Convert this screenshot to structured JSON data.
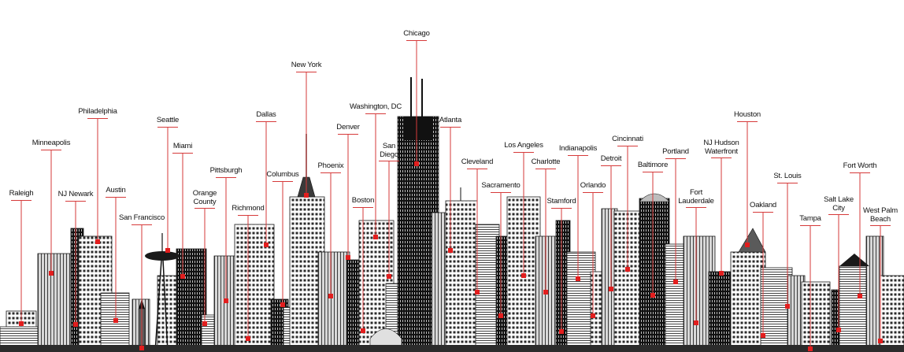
{
  "colors": {
    "accent": "#e21e1e",
    "line": "#d63a3a",
    "building_dark": "#1a1a1a",
    "building_mid": "#5a5a5a",
    "building_light": "#bdbdbd",
    "background": "#ffffff"
  },
  "cities": [
    {
      "name": "Raleigh"
    },
    {
      "name": "Minneapolis"
    },
    {
      "name": "NJ Newark"
    },
    {
      "name": "Philadelphia"
    },
    {
      "name": "Austin"
    },
    {
      "name": "San Francisco"
    },
    {
      "name": "Seattle"
    },
    {
      "name": "Miami"
    },
    {
      "name": "Orange\nCounty"
    },
    {
      "name": "Pittsburgh"
    },
    {
      "name": "Richmond"
    },
    {
      "name": "Dallas"
    },
    {
      "name": "Columbus"
    },
    {
      "name": "New York"
    },
    {
      "name": "Phoenix"
    },
    {
      "name": "Denver"
    },
    {
      "name": "Washington, DC"
    },
    {
      "name": "Boston"
    },
    {
      "name": "San\nDiego"
    },
    {
      "name": "Chicago"
    },
    {
      "name": "Atlanta"
    },
    {
      "name": "Cleveland"
    },
    {
      "name": "Sacramento"
    },
    {
      "name": "Los Angeles"
    },
    {
      "name": "Charlotte"
    },
    {
      "name": "Stamford"
    },
    {
      "name": "Indianapolis"
    },
    {
      "name": "Orlando"
    },
    {
      "name": "Detroit"
    },
    {
      "name": "Cincinnati"
    },
    {
      "name": "Baltimore"
    },
    {
      "name": "Portland"
    },
    {
      "name": "Fort\nLauderdale"
    },
    {
      "name": "NJ Hudson\nWaterfront"
    },
    {
      "name": "Houston"
    },
    {
      "name": "Oakland"
    },
    {
      "name": "St. Louis"
    },
    {
      "name": "Tampa"
    },
    {
      "name": "Salt Lake\nCity"
    },
    {
      "name": "Fort Worth"
    },
    {
      "name": "West Palm\nBeach"
    }
  ]
}
